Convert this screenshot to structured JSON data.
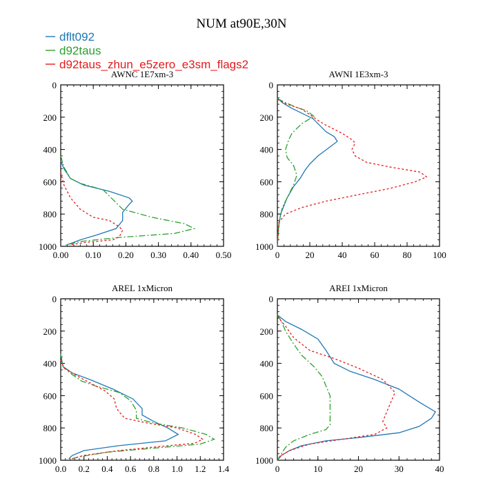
{
  "figure_title": "NUM at90E,30N",
  "colors": {
    "s0": "#1f77b4",
    "s1": "#2ca02c",
    "s2": "#e41a1c",
    "axis": "#000000"
  },
  "legend": [
    "dflt092",
    "d92taus",
    "d92taus_zhun_e5zero_e3sm_flags2"
  ],
  "chart_data": [
    {
      "type": "line",
      "title": "AWNC 1E7xm-3",
      "xlim": [
        0,
        0.5
      ],
      "ylim": [
        1000,
        0
      ],
      "xticks": [
        0,
        0.1,
        0.2,
        0.3,
        0.4,
        0.5
      ],
      "xticklabels": [
        "0.00",
        "0.10",
        "0.20",
        "0.30",
        "0.40",
        "0.50"
      ],
      "yticks": [
        0,
        200,
        400,
        600,
        800,
        1000
      ],
      "yticklabels": [
        "0",
        "200",
        "400",
        "600",
        "800",
        "1000"
      ],
      "series": [
        {
          "name": "dflt092",
          "points": [
            [
              0.0,
              470
            ],
            [
              0.01,
              520
            ],
            [
              0.03,
              580
            ],
            [
              0.07,
              620
            ],
            [
              0.15,
              660
            ],
            [
              0.21,
              700
            ],
            [
              0.22,
              720
            ],
            [
              0.21,
              740
            ],
            [
              0.19,
              790
            ],
            [
              0.19,
              840
            ],
            [
              0.17,
              890
            ],
            [
              0.11,
              930
            ],
            [
              0.06,
              960
            ],
            [
              0.02,
              990
            ]
          ]
        },
        {
          "name": "d92taus",
          "points": [
            [
              0.0,
              440
            ],
            [
              0.01,
              510
            ],
            [
              0.03,
              580
            ],
            [
              0.06,
              610
            ],
            [
              0.13,
              650
            ],
            [
              0.16,
              710
            ],
            [
              0.19,
              770
            ],
            [
              0.28,
              820
            ],
            [
              0.38,
              860
            ],
            [
              0.41,
              890
            ],
            [
              0.35,
              920
            ],
            [
              0.18,
              945
            ],
            [
              0.06,
              970
            ],
            [
              0.01,
              995
            ]
          ]
        },
        {
          "name": "d92taus_zhun_e5zero_e3sm_flags2",
          "points": [
            [
              0.0,
              540
            ],
            [
              0.01,
              620
            ],
            [
              0.03,
              700
            ],
            [
              0.06,
              770
            ],
            [
              0.1,
              820
            ],
            [
              0.15,
              840
            ],
            [
              0.18,
              880
            ],
            [
              0.19,
              900
            ],
            [
              0.18,
              940
            ],
            [
              0.16,
              960
            ],
            [
              0.08,
              975
            ],
            [
              0.03,
              990
            ]
          ]
        }
      ]
    },
    {
      "type": "line",
      "title": "AWNI 1E3xm-3",
      "xlim": [
        0,
        100
      ],
      "ylim": [
        1000,
        0
      ],
      "xticks": [
        0,
        20,
        40,
        60,
        80,
        100
      ],
      "xticklabels": [
        "0",
        "20",
        "40",
        "60",
        "80",
        "100"
      ],
      "yticks": [
        0,
        200,
        400,
        600,
        800,
        1000
      ],
      "yticklabels": [
        "0",
        "200",
        "400",
        "600",
        "800",
        "1000"
      ],
      "series": [
        {
          "name": "dflt092",
          "points": [
            [
              0,
              80
            ],
            [
              3,
              110
            ],
            [
              8,
              140
            ],
            [
              14,
              170
            ],
            [
              22,
              210
            ],
            [
              30,
              290
            ],
            [
              35,
              320
            ],
            [
              37,
              350
            ],
            [
              33,
              380
            ],
            [
              25,
              440
            ],
            [
              22,
              470
            ],
            [
              20,
              490
            ],
            [
              17,
              530
            ],
            [
              14,
              580
            ],
            [
              10,
              630
            ],
            [
              6,
              700
            ],
            [
              2,
              800
            ],
            [
              0.5,
              900
            ],
            [
              0,
              1000
            ]
          ]
        },
        {
          "name": "d92taus",
          "points": [
            [
              0,
              85
            ],
            [
              5,
              110
            ],
            [
              12,
              140
            ],
            [
              18,
              160
            ],
            [
              22,
              190
            ],
            [
              23,
              200
            ],
            [
              20,
              210
            ],
            [
              15,
              240
            ],
            [
              12,
              270
            ],
            [
              9,
              300
            ],
            [
              7,
              340
            ],
            [
              5,
              400
            ],
            [
              6,
              450
            ],
            [
              10,
              500
            ],
            [
              12,
              560
            ],
            [
              10,
              620
            ],
            [
              7,
              680
            ],
            [
              3,
              760
            ],
            [
              1,
              850
            ],
            [
              0,
              1000
            ]
          ]
        },
        {
          "name": "d92taus_zhun_e5zero_e3sm_flags2",
          "points": [
            [
              0,
              90
            ],
            [
              6,
              120
            ],
            [
              15,
              150
            ],
            [
              25,
              220
            ],
            [
              30,
              250
            ],
            [
              40,
              300
            ],
            [
              46,
              340
            ],
            [
              48,
              360
            ],
            [
              46,
              400
            ],
            [
              48,
              440
            ],
            [
              55,
              480
            ],
            [
              70,
              510
            ],
            [
              88,
              540
            ],
            [
              92,
              570
            ],
            [
              85,
              600
            ],
            [
              70,
              640
            ],
            [
              50,
              680
            ],
            [
              30,
              720
            ],
            [
              15,
              760
            ],
            [
              5,
              800
            ],
            [
              1,
              850
            ],
            [
              0,
              1000
            ]
          ]
        }
      ]
    },
    {
      "type": "line",
      "title": "AREL 1xMicron",
      "xlim": [
        0,
        1.4
      ],
      "ylim": [
        1000,
        0
      ],
      "xticks": [
        0,
        0.2,
        0.4,
        0.6,
        0.8,
        1.0,
        1.2,
        1.4
      ],
      "xticklabels": [
        "0.0",
        "0.2",
        "0.4",
        "0.6",
        "0.8",
        "1.0",
        "1.2",
        "1.4"
      ],
      "yticks": [
        0,
        200,
        400,
        600,
        800,
        1000
      ],
      "yticklabels": [
        "0",
        "200",
        "400",
        "600",
        "800",
        "1000"
      ],
      "series": [
        {
          "name": "dflt092",
          "points": [
            [
              0,
              350
            ],
            [
              0.02,
              420
            ],
            [
              0.1,
              460
            ],
            [
              0.25,
              500
            ],
            [
              0.45,
              560
            ],
            [
              0.62,
              620
            ],
            [
              0.7,
              680
            ],
            [
              0.7,
              720
            ],
            [
              0.8,
              760
            ],
            [
              0.92,
              800
            ],
            [
              1.01,
              840
            ],
            [
              0.9,
              880
            ],
            [
              0.5,
              910
            ],
            [
              0.2,
              940
            ],
            [
              0.1,
              970
            ],
            [
              0.07,
              990
            ]
          ]
        },
        {
          "name": "d92taus",
          "points": [
            [
              0,
              340
            ],
            [
              0.02,
              420
            ],
            [
              0.08,
              460
            ],
            [
              0.18,
              510
            ],
            [
              0.3,
              540
            ],
            [
              0.5,
              580
            ],
            [
              0.6,
              630
            ],
            [
              0.65,
              690
            ],
            [
              0.65,
              740
            ],
            [
              0.8,
              770
            ],
            [
              1.05,
              800
            ],
            [
              1.25,
              840
            ],
            [
              1.32,
              870
            ],
            [
              1.2,
              900
            ],
            [
              0.8,
              925
            ],
            [
              0.4,
              950
            ],
            [
              0.15,
              980
            ],
            [
              0.08,
              995
            ]
          ]
        },
        {
          "name": "d92taus_zhun_e5zero_e3sm_flags2",
          "points": [
            [
              0,
              380
            ],
            [
              0.03,
              430
            ],
            [
              0.12,
              470
            ],
            [
              0.25,
              520
            ],
            [
              0.38,
              570
            ],
            [
              0.46,
              620
            ],
            [
              0.48,
              680
            ],
            [
              0.55,
              740
            ],
            [
              0.75,
              770
            ],
            [
              1.0,
              800
            ],
            [
              1.16,
              840
            ],
            [
              1.22,
              870
            ],
            [
              1.15,
              895
            ],
            [
              0.85,
              915
            ],
            [
              0.5,
              940
            ],
            [
              0.2,
              970
            ],
            [
              0.1,
              990
            ]
          ]
        }
      ]
    },
    {
      "type": "line",
      "title": "AREI 1xMicron",
      "xlim": [
        0,
        40
      ],
      "ylim": [
        1000,
        0
      ],
      "xticks": [
        0,
        10,
        20,
        30,
        40
      ],
      "xticklabels": [
        "0",
        "10",
        "20",
        "30",
        "40"
      ],
      "yticks": [
        0,
        200,
        400,
        600,
        800,
        1000
      ],
      "yticklabels": [
        "0",
        "200",
        "400",
        "600",
        "800",
        "1000"
      ],
      "series": [
        {
          "name": "dflt092",
          "points": [
            [
              0,
              100
            ],
            [
              2,
              140
            ],
            [
              6,
              190
            ],
            [
              10,
              250
            ],
            [
              12,
              320
            ],
            [
              14,
              400
            ],
            [
              18,
              450
            ],
            [
              24,
              500
            ],
            [
              30,
              560
            ],
            [
              35,
              640
            ],
            [
              39,
              700
            ],
            [
              38,
              740
            ],
            [
              35,
              790
            ],
            [
              30,
              830
            ],
            [
              20,
              860
            ],
            [
              12,
              880
            ],
            [
              6,
              910
            ],
            [
              3,
              940
            ],
            [
              1,
              970
            ],
            [
              0,
              1000
            ]
          ]
        },
        {
          "name": "d92taus",
          "points": [
            [
              0,
              100
            ],
            [
              1,
              140
            ],
            [
              2,
              200
            ],
            [
              4,
              280
            ],
            [
              6,
              350
            ],
            [
              9,
              420
            ],
            [
              11,
              480
            ],
            [
              12,
              540
            ],
            [
              13,
              600
            ],
            [
              13,
              660
            ],
            [
              13,
              720
            ],
            [
              13,
              780
            ],
            [
              12,
              810
            ],
            [
              8,
              840
            ],
            [
              4,
              880
            ],
            [
              2,
              920
            ],
            [
              1,
              960
            ],
            [
              0,
              1000
            ]
          ]
        },
        {
          "name": "d92taus_zhun_e5zero_e3sm_flags2",
          "points": [
            [
              0,
              110
            ],
            [
              2,
              170
            ],
            [
              4,
              240
            ],
            [
              8,
              320
            ],
            [
              14,
              370
            ],
            [
              20,
              430
            ],
            [
              26,
              500
            ],
            [
              29,
              580
            ],
            [
              28,
              640
            ],
            [
              27,
              700
            ],
            [
              26,
              760
            ],
            [
              27,
              800
            ],
            [
              24,
              840
            ],
            [
              16,
              870
            ],
            [
              8,
              900
            ],
            [
              3,
              940
            ],
            [
              1,
              970
            ],
            [
              0,
              1000
            ]
          ]
        }
      ]
    }
  ]
}
